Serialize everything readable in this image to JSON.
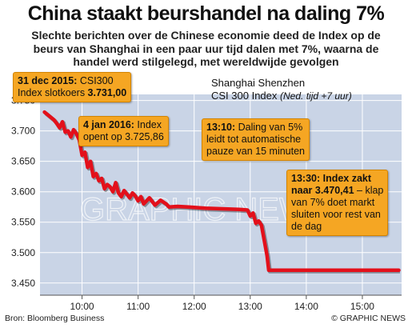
{
  "header": {
    "title": "China staakt beurshandel na daling 7%",
    "subtitle_lines": [
      "Slechte berichten over de Chinese economie deed de Index op de",
      "beurs van Shanghai in een paar uur tijd dalen met 7%, waarna de",
      "handel werd stilgelegd, met wereldwijde gevolgen"
    ]
  },
  "legend": {
    "line1": "Shanghai Shenzhen",
    "line2": "CSI 300 Index",
    "note": "(Ned. tijd +7 uur)"
  },
  "callouts": {
    "c1": {
      "bold1": "31 dec 2015:",
      "text1": " CSI300",
      "text2": "Index slotkoers ",
      "bold2": "3.731,00"
    },
    "c2": {
      "bold1": "4 jan 2016:",
      "text1": " Index",
      "text2": "opent op 3.725,86"
    },
    "c3": {
      "bold1": "13:10:",
      "text1": " Daling van 5%",
      "text2": "leidt tot automatische",
      "text3": "pauze van 15 minuten"
    },
    "c4": {
      "bold1": "13:30: Index zakt",
      "bold2": "naar 3.470,41",
      "text1": " – klap",
      "text2": "van 7% doet markt",
      "text3": "sluiten voor rest van",
      "text4": "de dag"
    }
  },
  "footer": {
    "source": "Bron: Bloomberg Business",
    "credit": "© GRAPHIC NEWS"
  },
  "watermark": "GRAPHIC NEWS",
  "colors": {
    "line": "#e3101b",
    "area": "#c9d4e6",
    "callout": "#f5a623",
    "grid": "#ffffff"
  },
  "chart_data": {
    "type": "line",
    "title": "China staakt beurshandel na daling 7%",
    "xlabel": "",
    "ylabel": "",
    "ylim": [
      3430,
      3760
    ],
    "yticks": [
      "3.750",
      "3.700",
      "3.650",
      "3.600",
      "3.550",
      "3.500",
      "3.450"
    ],
    "ytick_values": [
      3750,
      3700,
      3650,
      3600,
      3550,
      3500,
      3450
    ],
    "xticks": [
      "10:00",
      "11:00",
      "12:00",
      "13:00",
      "14:00",
      "15:00"
    ],
    "xtick_values": [
      10,
      11,
      12,
      13,
      14,
      15
    ],
    "x_range": [
      9.25,
      15.7
    ],
    "grid": true,
    "series": [
      {
        "name": "CSI 300 Index",
        "x": [
          9.33,
          9.5,
          9.55,
          9.6,
          9.65,
          9.7,
          9.75,
          9.8,
          9.85,
          9.9,
          9.95,
          10.0,
          10.05,
          10.1,
          10.15,
          10.2,
          10.25,
          10.3,
          10.35,
          10.4,
          10.45,
          10.5,
          10.55,
          10.6,
          10.65,
          10.7,
          10.75,
          10.8,
          10.85,
          10.9,
          10.95,
          11.0,
          11.05,
          11.1,
          11.2,
          11.3,
          11.4,
          11.5,
          11.55,
          11.7,
          11.9,
          12.2,
          12.5,
          12.8,
          12.95,
          13.0,
          13.05,
          13.1,
          13.15,
          13.2,
          13.25,
          13.3,
          13.33,
          13.5,
          14.0,
          14.5,
          15.0,
          15.5,
          15.65
        ],
        "y": [
          3731,
          3718,
          3712,
          3705,
          3715,
          3698,
          3700,
          3690,
          3702,
          3695,
          3685,
          3660,
          3665,
          3640,
          3650,
          3625,
          3630,
          3618,
          3622,
          3605,
          3612,
          3608,
          3600,
          3615,
          3598,
          3592,
          3602,
          3596,
          3590,
          3598,
          3593,
          3585,
          3592,
          3580,
          3590,
          3578,
          3586,
          3580,
          3575,
          3576,
          3575,
          3573,
          3572,
          3571,
          3570,
          3560,
          3565,
          3548,
          3552,
          3545,
          3520,
          3495,
          3471,
          3471,
          3471,
          3471,
          3471,
          3471,
          3471
        ]
      }
    ]
  }
}
